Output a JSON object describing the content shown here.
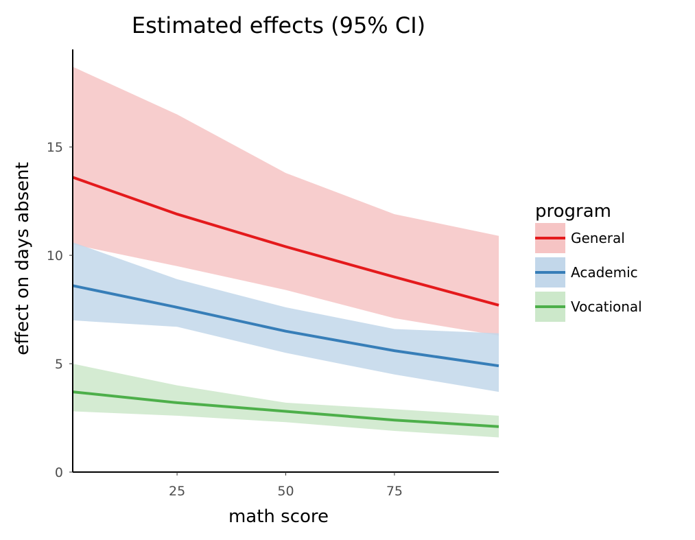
{
  "chart_data": {
    "type": "line",
    "title": "Estimated effects (95% CI)",
    "xlabel": "math score",
    "ylabel": "effect on days absent",
    "xlim": [
      1,
      99
    ],
    "ylim": [
      0,
      19.5
    ],
    "x_ticks": [
      25,
      50,
      75
    ],
    "x_tick_labels": [
      "25",
      "50",
      "75"
    ],
    "y_ticks": [
      0,
      5,
      10,
      15
    ],
    "y_tick_labels": [
      "0",
      "5",
      "10",
      "15"
    ],
    "grid": false,
    "legend": {
      "title": "program",
      "placement": "right"
    },
    "x": [
      1,
      25,
      50,
      75,
      99
    ],
    "series": [
      {
        "name": "General",
        "color": "#e41a1c",
        "fill": "#f6c4c4",
        "values": [
          13.6,
          11.9,
          10.4,
          9.0,
          7.7
        ],
        "lower": [
          10.5,
          9.5,
          8.4,
          7.1,
          6.3
        ],
        "upper": [
          18.7,
          16.5,
          13.8,
          11.9,
          10.9
        ]
      },
      {
        "name": "Academic",
        "color": "#377eb8",
        "fill": "#c2d7ea",
        "values": [
          8.6,
          7.6,
          6.5,
          5.6,
          4.9
        ],
        "lower": [
          7.0,
          6.7,
          5.5,
          4.5,
          3.7
        ],
        "upper": [
          10.6,
          8.9,
          7.6,
          6.6,
          6.4
        ]
      },
      {
        "name": "Vocational",
        "color": "#4daf4a",
        "fill": "#cce8ca",
        "values": [
          3.7,
          3.2,
          2.8,
          2.4,
          2.1
        ],
        "lower": [
          2.8,
          2.6,
          2.3,
          1.9,
          1.6
        ],
        "upper": [
          5.0,
          4.0,
          3.2,
          2.9,
          2.6
        ]
      }
    ]
  }
}
